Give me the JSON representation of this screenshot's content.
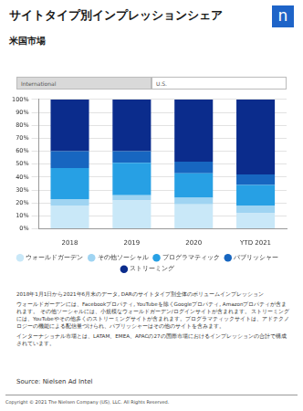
{
  "header": {
    "title": "サイトタイプ別インプレッションシェア",
    "subtitle": "米国市場",
    "logo": "n"
  },
  "tabs": [
    {
      "label": "International",
      "active": false
    },
    {
      "label": "U.S.",
      "active": true
    }
  ],
  "chart_data": {
    "type": "bar",
    "stacked": true,
    "categories": [
      "2018",
      "2019",
      "2020",
      "YTD 2021"
    ],
    "series": [
      {
        "name": "ウォールドガーデン",
        "color": "#c9e8f8",
        "values": [
          18,
          22,
          19,
          12
        ]
      },
      {
        "name": "その他ソーシャル",
        "color": "#9fd4f2",
        "values": [
          5,
          4,
          5,
          6
        ]
      },
      {
        "name": "プログラマティック",
        "color": "#27a0e4",
        "values": [
          24,
          25,
          19,
          16
        ]
      },
      {
        "name": "パブリッシャー",
        "color": "#1766c0",
        "values": [
          13,
          9,
          9,
          8
        ]
      },
      {
        "name": "ストリーミング",
        "color": "#0b2c8c",
        "values": [
          40,
          40,
          48,
          58
        ]
      }
    ],
    "ylim": [
      0,
      100
    ],
    "yticks": [
      {
        "value": 0,
        "label": "0%"
      },
      {
        "value": 10,
        "label": "10%"
      },
      {
        "value": 20,
        "label": "20%"
      },
      {
        "value": 30,
        "label": "30%"
      },
      {
        "value": 40,
        "label": "40%"
      },
      {
        "value": 50,
        "label": "50%"
      },
      {
        "value": 60,
        "label": "60%"
      },
      {
        "value": 70,
        "label": "70%"
      },
      {
        "value": 80,
        "label": "80%"
      },
      {
        "value": 90,
        "label": "90%"
      },
      {
        "value": 100,
        "label": "100%"
      }
    ],
    "grid": true,
    "legend": "bottom"
  },
  "notes": [
    "2018年1月1日から2021年6月末のデータ, DARのサイトタイプ別全体のボリュームインプレッション",
    "ウォールドガーデンには、Facebookプロパティ, YouTubeを除くGoogleプロパティ, Amazonプロパティが含まれます。 その他ソーシャルには、小規模なウォールドガーデン/ログインサイトが含まれます。 ストリーミングには、YouTubeやその他多くのストリーミングサイトが含まれます。プログラマティックサイトは、アドテクノロジーの機能による配信量づけられ、パブリッシャーはその他のサイトを含みます。",
    "インターナショナル市場とは、LATAM、EMEA、APACの27の国際市場におけるインプレッションの合計で構成されています。"
  ],
  "source": "Source: Nielsen Ad Intel",
  "copyright": "Copyright © 2021 The Nielsen Company (US), LLC. All Rights Reserved."
}
